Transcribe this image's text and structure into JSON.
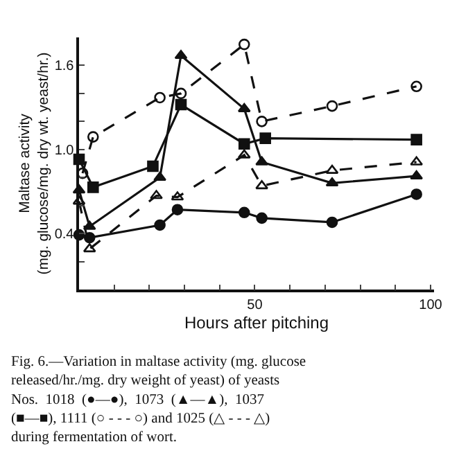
{
  "chart_data": {
    "type": "line",
    "xlabel": "Hours after pitching",
    "ylabel": "Maltase activity\n(mg. glucose/mg. dry wt. yeast/hr.)",
    "annotations": [
      "Fig. 6.—Variation in maltase activity (mg. glucose\nreleased/hr./mg. dry weight of yeast) of yeasts\nNos.  1018  (●—●),  1073  (▲—▲),  1037\n(■—■), 1111 (○ - - - ○) and 1025 (△ - - - △)\nduring fermentation of wort."
    ],
    "series": [
      {
        "color": "#111111",
        "marker": "circle",
        "line_style": "solid",
        "x": [
          0,
          3,
          23,
          28,
          47,
          52,
          72,
          96
        ],
        "values": [
          0.39,
          0.37,
          0.46,
          0.57,
          0.55,
          0.51,
          0.48,
          0.68
        ]
      },
      {
        "color": "#111111",
        "marker": "triangle",
        "line_style": "solid",
        "x": [
          0,
          3,
          23,
          29,
          47,
          52,
          72,
          96
        ],
        "values": [
          0.71,
          0.45,
          0.8,
          1.67,
          1.29,
          0.91,
          0.76,
          0.81
        ]
      },
      {
        "color": "#111111",
        "marker": "square",
        "line_style": "solid",
        "x": [
          0,
          4,
          21,
          29,
          47,
          53,
          96
        ],
        "values": [
          0.93,
          0.73,
          0.88,
          1.32,
          1.04,
          1.08,
          1.07
        ]
      },
      {
        "color": "#111111",
        "marker": "circle",
        "line_style": "dashed",
        "x": [
          1,
          4,
          23,
          29,
          47,
          52,
          72,
          96
        ],
        "values": [
          0.83,
          1.09,
          1.37,
          1.4,
          1.75,
          1.2,
          1.31,
          1.45
        ]
      },
      {
        "color": "#111111",
        "marker": "triangle",
        "line_style": "dashed",
        "x": [
          0,
          3,
          22,
          28,
          47,
          52,
          72,
          96
        ],
        "values": [
          0.63,
          0.29,
          0.67,
          0.66,
          0.96,
          0.74,
          0.85,
          0.91
        ]
      }
    ],
    "xlim": [
      0,
      101
    ],
    "xticks": [
      {
        "value": 10,
        "label": null
      },
      {
        "value": 20,
        "label": null
      },
      {
        "value": 30,
        "label": null
      },
      {
        "value": 40,
        "label": null
      },
      50,
      {
        "value": 60,
        "label": null
      },
      {
        "value": 70,
        "label": null
      },
      {
        "value": 80,
        "label": null
      },
      {
        "value": 90,
        "label": null
      },
      100
    ],
    "ylim": [
      0,
      1.8
    ],
    "yticks": [
      {
        "value": 0.2,
        "label": null
      },
      0.4,
      {
        "value": 0.6,
        "label": null
      },
      {
        "value": 0.8,
        "label": null
      },
      {
        "value": 1.0,
        "label": "1.0"
      },
      {
        "value": 1.2,
        "label": null
      },
      {
        "value": 1.4,
        "label": null
      },
      1.6
    ]
  }
}
